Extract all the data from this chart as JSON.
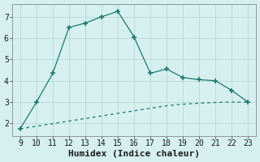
{
  "x": [
    9,
    10,
    11,
    12,
    13,
    14,
    15,
    16,
    17,
    18,
    19,
    20,
    21,
    22,
    23
  ],
  "y_main": [
    1.75,
    3.0,
    4.35,
    6.5,
    6.7,
    7.0,
    7.25,
    6.05,
    4.35,
    4.55,
    4.15,
    4.05,
    4.0,
    3.55,
    3.0
  ],
  "y_base": [
    1.75,
    1.87,
    1.99,
    2.11,
    2.23,
    2.35,
    2.47,
    2.59,
    2.71,
    2.83,
    2.9,
    2.95,
    2.98,
    3.0,
    3.0
  ],
  "line_color": "#1a7a6e",
  "bg_color": "#d6f0f0",
  "grid_color": "#b8d8d4",
  "spine_color": "#888888",
  "xlabel": "Humidex (Indice chaleur)",
  "ylim": [
    1.4,
    7.6
  ],
  "xlim": [
    8.5,
    23.5
  ],
  "yticks": [
    2,
    3,
    4,
    5,
    6,
    7
  ],
  "xticks": [
    9,
    10,
    11,
    12,
    13,
    14,
    15,
    16,
    17,
    18,
    19,
    20,
    21,
    22,
    23
  ],
  "font_color": "#1a1a1a",
  "tick_fontsize": 7.0,
  "label_fontsize": 8.0
}
